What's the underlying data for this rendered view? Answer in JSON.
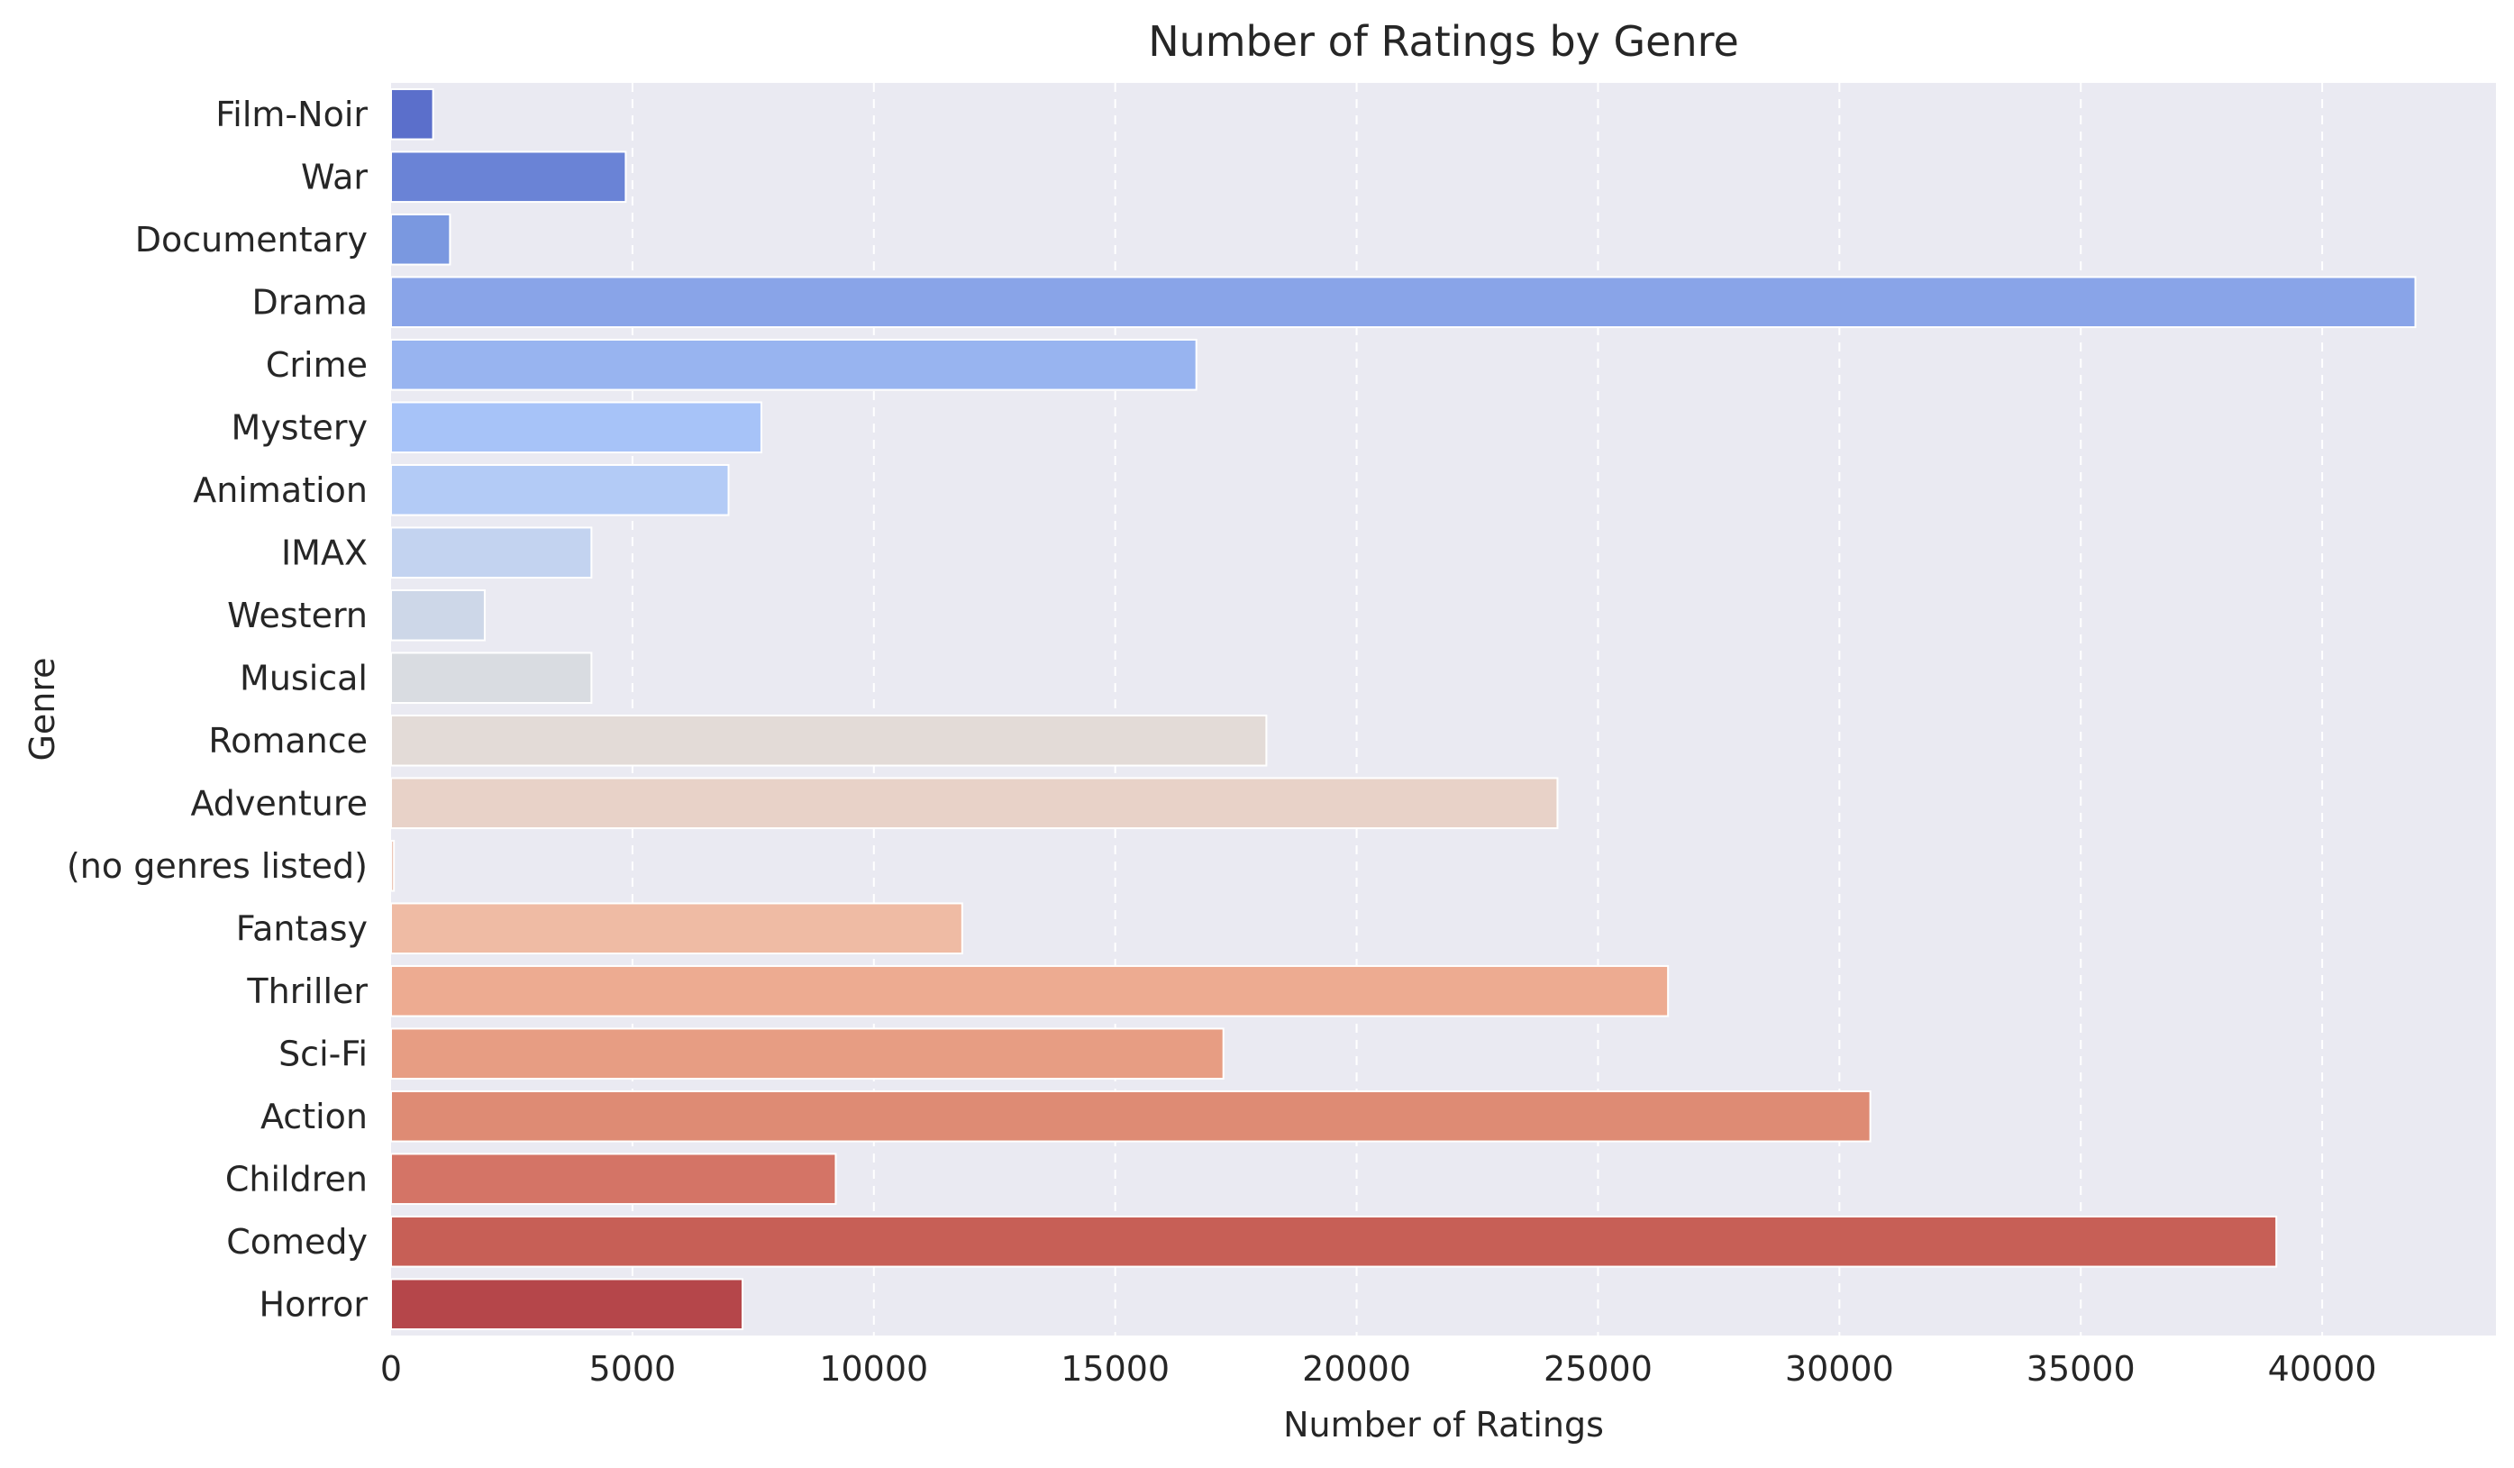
{
  "chart_data": {
    "type": "bar",
    "orientation": "horizontal",
    "title": "Number of Ratings by Genre",
    "xlabel": "Number of Ratings",
    "ylabel": "Genre",
    "xlim": [
      0,
      43600
    ],
    "xticks": [
      0,
      5000,
      10000,
      15000,
      20000,
      25000,
      30000,
      35000,
      40000
    ],
    "grid": "x-dashed",
    "categories": [
      "Film-Noir",
      "War",
      "Documentary",
      "Drama",
      "Crime",
      "Mystery",
      "Animation",
      "IMAX",
      "Western",
      "Musical",
      "Romance",
      "Adventure",
      "(no genres listed)",
      "Fantasy",
      "Thriller",
      "Sci-Fi",
      "Action",
      "Children",
      "Comedy",
      "Horror"
    ],
    "values": [
      870,
      4860,
      1220,
      41930,
      16680,
      7670,
      6990,
      4150,
      1940,
      4150,
      18130,
      24160,
      60,
      11830,
      26450,
      17240,
      30640,
      9210,
      39050,
      7280
    ],
    "colors": [
      "#5b6fcb",
      "#6a83d6",
      "#7a98e0",
      "#89a4e8",
      "#98b4f0",
      "#a7c3f8",
      "#b3cbf6",
      "#c3d3f0",
      "#cdd7e8",
      "#d9dce1",
      "#e3dbd7",
      "#e8d2c8",
      "#ecc8b8",
      "#efbba4",
      "#edab91",
      "#e79d83",
      "#de8b74",
      "#d47466",
      "#c75f56",
      "#b5464a"
    ]
  }
}
